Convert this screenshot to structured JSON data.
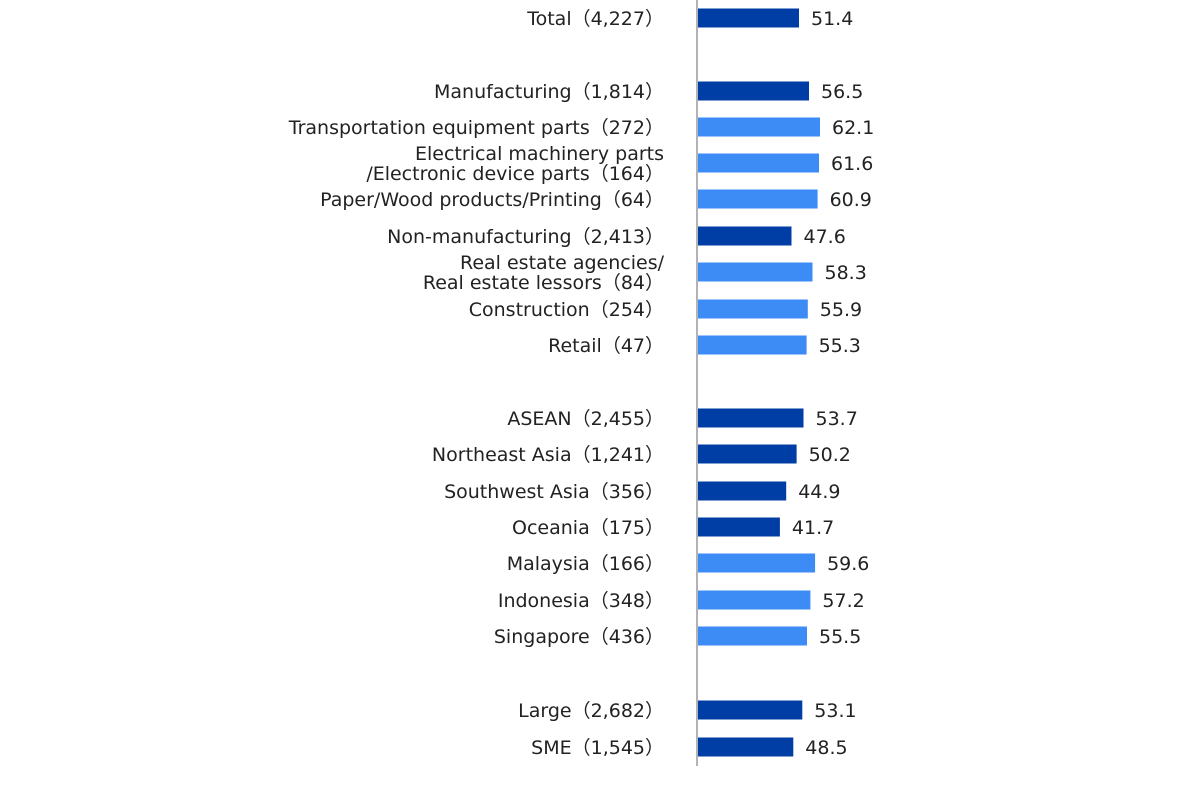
{
  "chart_data": {
    "type": "bar",
    "orientation": "horizontal",
    "colors": {
      "aggregate": "#003DA5",
      "detail": "#3D8BF5",
      "axis": "#9a9a9a"
    },
    "xlim": [
      0,
      70
    ],
    "items": [
      {
        "label": "Total（4,227）",
        "value": 51.4,
        "value_label": "51.4",
        "kind": "aggregate"
      },
      {
        "label": "Manufacturing（1,814）",
        "value": 56.5,
        "value_label": "56.5",
        "kind": "aggregate"
      },
      {
        "label": "Transportation equipment parts（272）",
        "value": 62.1,
        "value_label": "62.1",
        "kind": "detail"
      },
      {
        "label": "Electrical machinery parts\n/Electronic device parts（164）",
        "value": 61.6,
        "value_label": "61.6",
        "kind": "detail"
      },
      {
        "label": "Paper/Wood products/Printing（64）",
        "value": 60.9,
        "value_label": "60.9",
        "kind": "detail"
      },
      {
        "label": "Non-manufacturing（2,413）",
        "value": 47.6,
        "value_label": "47.6",
        "kind": "aggregate"
      },
      {
        "label": "Real estate agencies/\nReal estate lessors（84）",
        "value": 58.3,
        "value_label": "58.3",
        "kind": "detail"
      },
      {
        "label": "Construction（254）",
        "value": 55.9,
        "value_label": "55.9",
        "kind": "detail"
      },
      {
        "label": "Retail（47）",
        "value": 55.3,
        "value_label": "55.3",
        "kind": "detail"
      },
      {
        "label": "ASEAN（2,455）",
        "value": 53.7,
        "value_label": "53.7",
        "kind": "aggregate"
      },
      {
        "label": "Northeast Asia（1,241）",
        "value": 50.2,
        "value_label": "50.2",
        "kind": "aggregate"
      },
      {
        "label": "Southwest Asia（356）",
        "value": 44.9,
        "value_label": "44.9",
        "kind": "aggregate"
      },
      {
        "label": "Oceania（175）",
        "value": 41.7,
        "value_label": "41.7",
        "kind": "aggregate"
      },
      {
        "label": "Malaysia（166）",
        "value": 59.6,
        "value_label": "59.6",
        "kind": "detail"
      },
      {
        "label": "Indonesia（348）",
        "value": 57.2,
        "value_label": "57.2",
        "kind": "detail"
      },
      {
        "label": "Singapore（436）",
        "value": 55.5,
        "value_label": "55.5",
        "kind": "detail"
      },
      {
        "label": "Large（2,682）",
        "value": 53.1,
        "value_label": "53.1",
        "kind": "aggregate"
      },
      {
        "label": "SME（1,545）",
        "value": 48.5,
        "value_label": "48.5",
        "kind": "aggregate"
      }
    ]
  }
}
